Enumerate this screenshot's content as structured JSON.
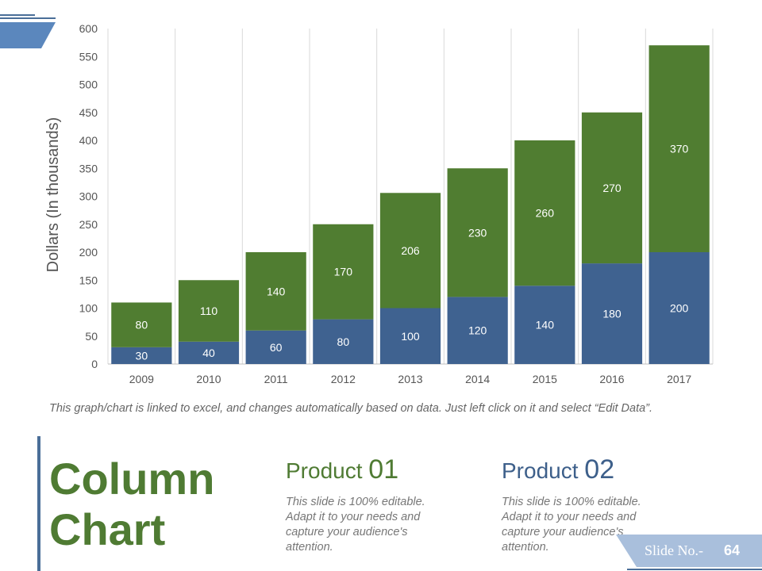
{
  "colors": {
    "product1": "#507d31",
    "product2": "#3f6290",
    "accent": "#4a6e98",
    "title": "#4f7b33"
  },
  "chart_data": {
    "type": "bar",
    "stacked": true,
    "categories": [
      "2009",
      "2010",
      "2011",
      "2012",
      "2013",
      "2014",
      "2015",
      "2016",
      "2017"
    ],
    "series": [
      {
        "values": [
          30,
          40,
          60,
          80,
          100,
          120,
          140,
          180,
          200
        ]
      },
      {
        "values": [
          80,
          110,
          140,
          170,
          206,
          230,
          260,
          270,
          370
        ]
      }
    ],
    "ylabel": "Dollars (In thousands)",
    "xlabel": "",
    "ylim": [
      0,
      600
    ],
    "yticks": [
      0,
      50,
      100,
      150,
      200,
      250,
      300,
      350,
      400,
      450,
      500,
      550,
      600
    ],
    "grid": "vertical",
    "legend": "none"
  },
  "note": "This graph/chart is linked to excel, and changes automatically based on data. Just left click on it and select “Edit Data”.",
  "title": {
    "line1": "Column",
    "line2": "Chart"
  },
  "products": [
    {
      "word": "Product",
      "number": "01",
      "description": "This slide is 100% editable. Adapt it to your needs and capture your audience's attention."
    },
    {
      "word": "Product",
      "number": "02",
      "description": "This slide is 100% editable. Adapt it to your needs and capture your audience's attention."
    }
  ],
  "slide": {
    "label": "Slide No.-",
    "number": "64"
  }
}
